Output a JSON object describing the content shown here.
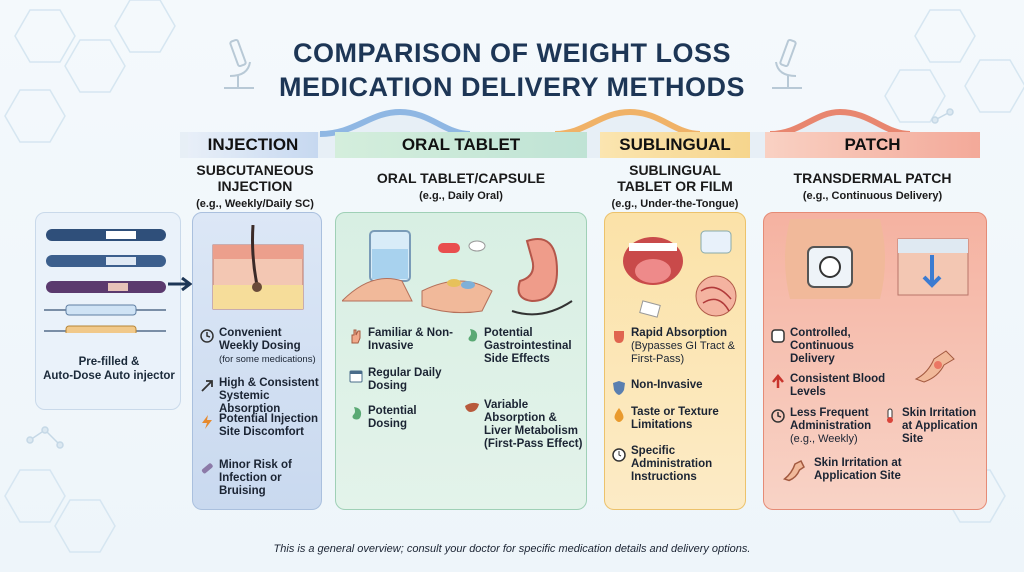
{
  "title_line1": "COMPARISON OF WEIGHT LOSS",
  "title_line2": "MEDICATION DELIVERY METHODS",
  "injection": {
    "header": "INJECTION",
    "sub_line1": "SUBCUTANEOUS",
    "sub_line2": "INJECTION",
    "example": "(e.g., Weekly/Daily SC)",
    "device_label_line1": "Pre-filled &",
    "device_label_line2": "Auto-Dose Auto injector",
    "items": [
      {
        "text": "Convenient Weekly Dosing",
        "note": "(for some medications)",
        "icon": "clock-icon"
      },
      {
        "text": "High & Consistent Systemic Absorption",
        "icon": "arrow-up-right-icon"
      },
      {
        "text": "Potential Injection Site Discomfort",
        "icon": "lightning-icon"
      },
      {
        "text": "Minor Risk of Infection or Bruising",
        "icon": "bandage-icon"
      }
    ]
  },
  "oral": {
    "header": "ORAL TABLET",
    "sub_line1": "ORAL TABLET/CAPSULE",
    "example": "(e.g., Daily Oral)",
    "items": [
      {
        "text": "Familiar & Non-Invasive",
        "icon": "hand-icon"
      },
      {
        "text": "Regular Daily Dosing",
        "icon": "calendar-icon"
      },
      {
        "text": "Potential Dosing",
        "icon": "stomach-icon"
      },
      {
        "text": "Potential Gastrointestinal Side Effects",
        "icon": "stomach-icon"
      },
      {
        "text": "Variable Absorption & Liver Metabolism (First-Pass Effect)",
        "icon": "liver-icon"
      }
    ]
  },
  "sublingual": {
    "header": "SUBLINGUAL",
    "sub_line1": "SUBLINGUAL",
    "sub_line2": "TABLET OR FILM",
    "example": "(e.g., Under-the-Tongue)",
    "items": [
      {
        "text": "Rapid Absorption",
        "note": "(Bypasses GI Tract & First-Pass)",
        "icon": "tongue-icon"
      },
      {
        "text": "Non-Invasive",
        "icon": "shield-icon"
      },
      {
        "text": "Taste or Texture Limitations",
        "icon": "drop-icon"
      },
      {
        "text": "Specific Administration Instructions",
        "icon": "timer-icon"
      }
    ]
  },
  "patch": {
    "header": "PATCH",
    "sub_line1": "TRANSDERMAL PATCH",
    "example": "(e.g., Continuous Delivery)",
    "items": [
      {
        "text": "Controlled, Continuous Delivery",
        "icon": "square-icon"
      },
      {
        "text": "Consistent Blood Levels",
        "icon": "arrow-up-icon"
      },
      {
        "text": "Less Frequent Administration",
        "note": "(e.g., Weekly)",
        "icon": "clock-icon"
      },
      {
        "text": "Skin Irritation at Application Site",
        "icon": "thermometer-icon"
      },
      {
        "text": "Skin Irritation at Application Site",
        "icon": "arm-icon"
      }
    ]
  },
  "footer": "This is a general overview; consult your doctor for specific medication details and delivery options.",
  "colors": {
    "injection": "#c7d6ee",
    "oral": "#cdeadf",
    "sublingual": "#f9dc9a",
    "patch": "#f6b5a5",
    "title": "#1d3656"
  }
}
